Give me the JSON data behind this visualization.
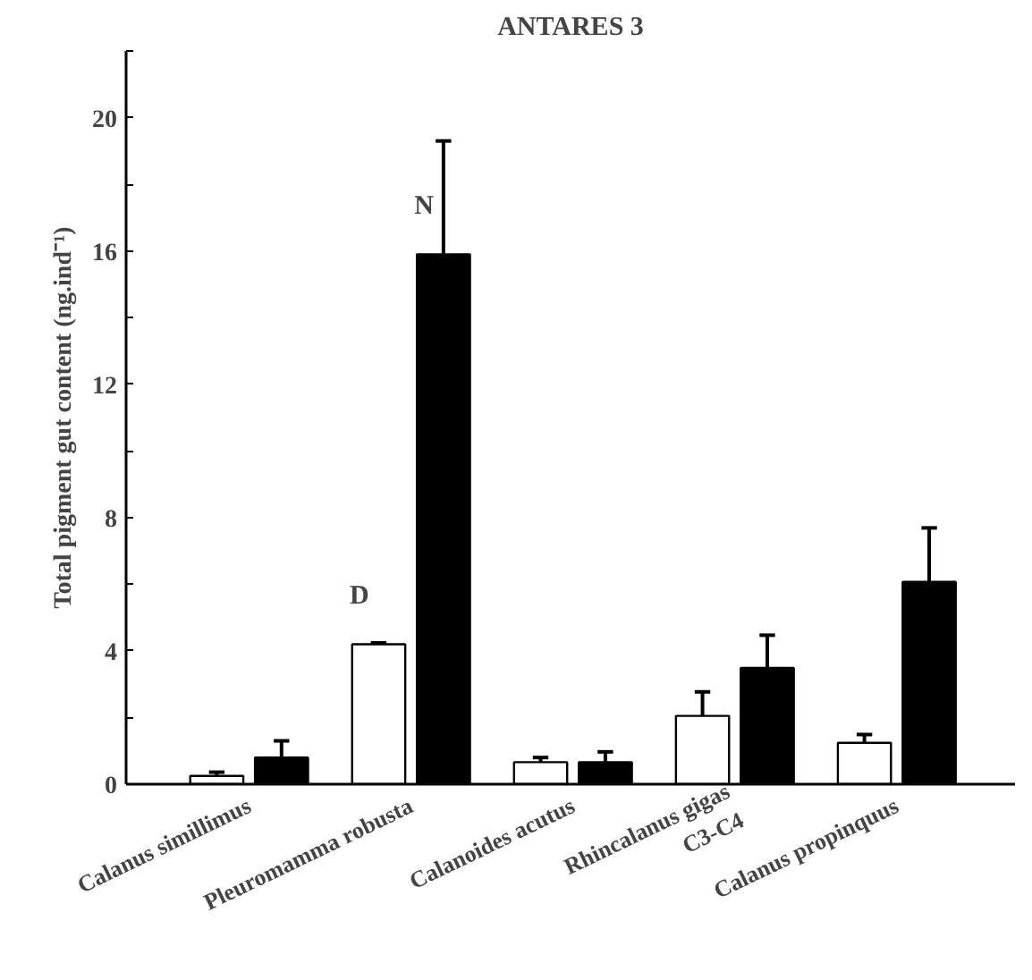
{
  "chart_data": {
    "type": "bar",
    "title": "ANTARES 3",
    "ylabel": "Total pigment gut content (ng.ind⁻¹)",
    "categories": [
      "Calanus simillimus",
      "Pleuromamma robusta",
      "Calanoides acutus",
      "Rhincalanus gigas\nC3-C4",
      "Calanus propinquus"
    ],
    "series": [
      {
        "name": "D",
        "color": "#ffffff",
        "values": [
          0.25,
          4.2,
          0.66,
          2.05,
          1.24
        ],
        "errors": [
          [
            0.25,
            0.36
          ],
          [
            4.2,
            4.24
          ],
          [
            0.66,
            0.8
          ],
          [
            2.05,
            2.77
          ],
          [
            1.24,
            1.49
          ]
        ]
      },
      {
        "name": "N",
        "color": "#000000",
        "values": [
          0.8,
          15.9,
          0.66,
          3.49,
          6.07
        ],
        "errors": [
          [
            0.8,
            1.3
          ],
          [
            15.9,
            19.3
          ],
          [
            0.66,
            0.97
          ],
          [
            3.49,
            4.47
          ],
          [
            6.07,
            7.69
          ]
        ]
      }
    ],
    "ylim": [
      0,
      22
    ],
    "yticks": [
      0,
      {
        "value": 2,
        "label": null
      },
      4,
      {
        "value": 6,
        "label": null
      },
      8,
      {
        "value": 10,
        "label": null
      },
      12,
      {
        "value": 14,
        "label": null
      },
      16,
      {
        "value": 18,
        "label": null
      },
      20,
      {
        "value": 22,
        "label": null
      }
    ],
    "grid": false
  }
}
